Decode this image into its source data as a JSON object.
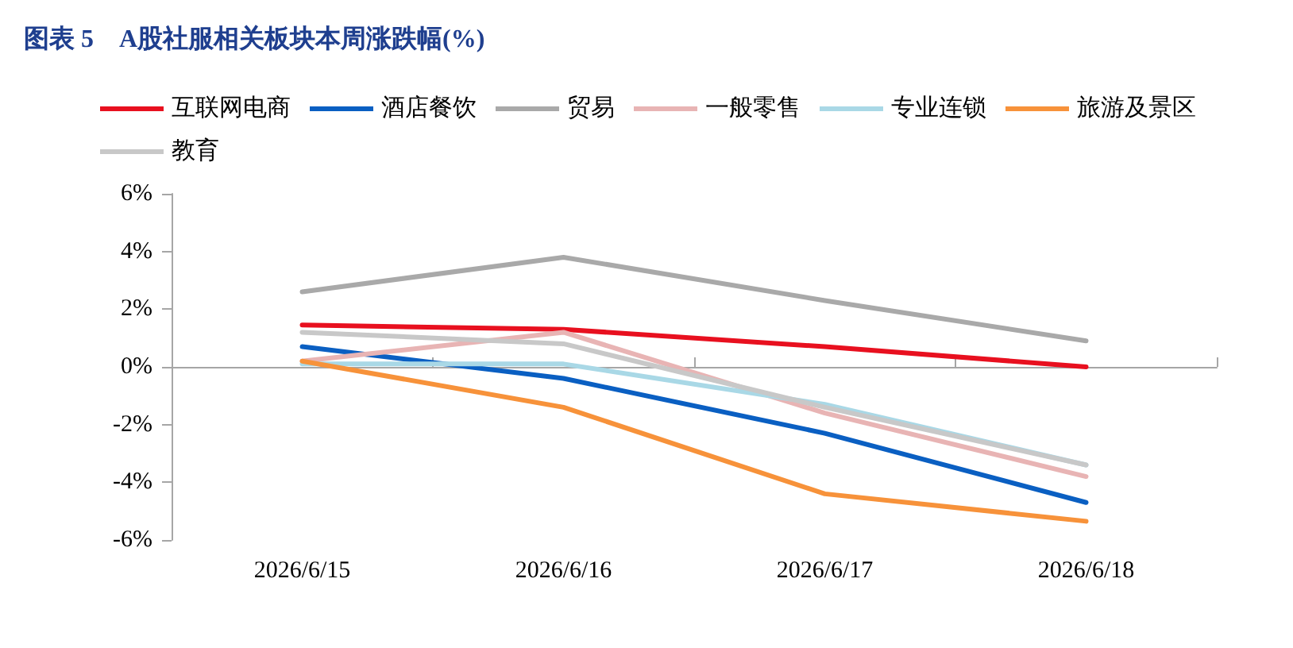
{
  "chart_data": {
    "type": "line",
    "title": "图表 5　A股社服相关板块本周涨跌幅(%)",
    "categories": [
      "2026/6/15",
      "2026/6/16",
      "2026/6/17",
      "2026/6/18"
    ],
    "series": [
      {
        "name": "互联网电商",
        "color": "#e8101f",
        "values": [
          1.45,
          1.3,
          0.7,
          0
        ]
      },
      {
        "name": "酒店餐饮",
        "color": "#0a5fc2",
        "values": [
          0.7,
          -0.4,
          -2.3,
          -4.7
        ]
      },
      {
        "name": "贸易",
        "color": "#a9a9a9",
        "values": [
          2.6,
          3.8,
          2.3,
          0.9
        ]
      },
      {
        "name": "一般零售",
        "color": "#e8b4b4",
        "values": [
          0.2,
          1.2,
          -1.6,
          -3.8
        ]
      },
      {
        "name": "专业连锁",
        "color": "#a9d8e6",
        "values": [
          0.1,
          0.1,
          -1.3,
          -3.4
        ]
      },
      {
        "name": "旅游及景区",
        "color": "#f7923a",
        "values": [
          0.2,
          -1.4,
          -4.4,
          -5.35
        ]
      },
      {
        "name": "教育",
        "color": "#c8c8c8",
        "values": [
          1.2,
          0.8,
          -1.4,
          -3.4
        ]
      }
    ],
    "ylim": [
      -6,
      6
    ],
    "yticks": [
      {
        "value": -6,
        "label": "-6%"
      },
      {
        "value": -4,
        "label": "-4%"
      },
      {
        "value": -2,
        "label": "-2%"
      },
      {
        "value": 0,
        "label": "0%"
      },
      {
        "value": 2,
        "label": "2%"
      },
      {
        "value": 4,
        "label": "4%"
      },
      {
        "value": 6,
        "label": "6%"
      }
    ],
    "legend": "top",
    "marker": "none",
    "line_style": "solid"
  }
}
